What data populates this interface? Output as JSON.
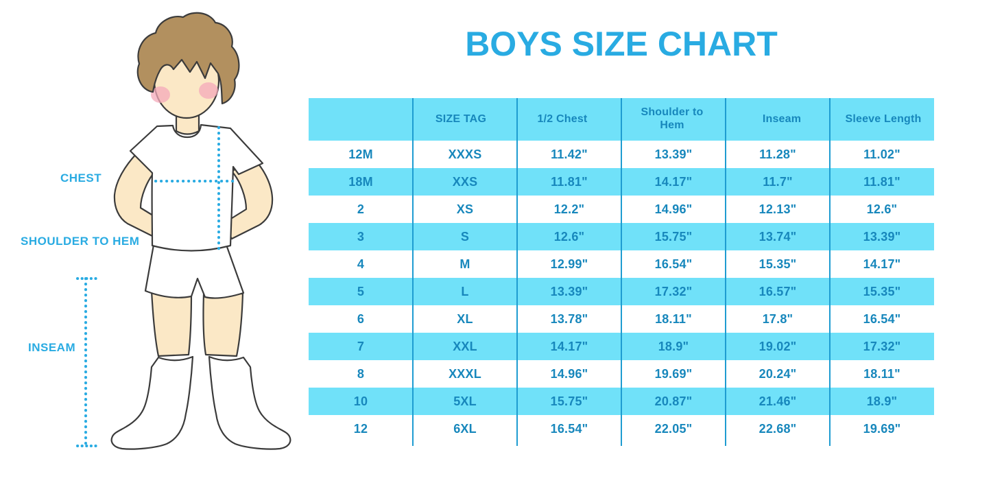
{
  "page_title": "BOYS SIZE CHART",
  "colors": {
    "title_blue": "#29abe2",
    "label_blue": "#29abe2",
    "table_cyan": "#70e1f9",
    "table_text": "#1787bc",
    "divider_blue": "#1e9cd1",
    "skin": "#fbe8c6",
    "hair": "#b2905f",
    "blush": "#f4a9ba",
    "outline": "#3b3b3b"
  },
  "figure": {
    "labels": [
      {
        "text": "CHEST"
      },
      {
        "text": "SHOULDER TO HEM"
      },
      {
        "text": "INSEAM"
      }
    ]
  },
  "chart_data": {
    "type": "table",
    "title": "BOYS SIZE CHART",
    "columns": [
      "",
      "SIZE TAG",
      "1/2 Chest",
      "Shoulder to Hem",
      "Inseam",
      "Sleeve Length"
    ],
    "rows": [
      [
        "12M",
        "XXXS",
        "11.42\"",
        "13.39\"",
        "11.28\"",
        "11.02\""
      ],
      [
        "18M",
        "XXS",
        "11.81\"",
        "14.17\"",
        "11.7\"",
        "11.81\""
      ],
      [
        "2",
        "XS",
        "12.2\"",
        "14.96\"",
        "12.13\"",
        "12.6\""
      ],
      [
        "3",
        "S",
        "12.6\"",
        "15.75\"",
        "13.74\"",
        "13.39\""
      ],
      [
        "4",
        "M",
        "12.99\"",
        "16.54\"",
        "15.35\"",
        "14.17\""
      ],
      [
        "5",
        "L",
        "13.39\"",
        "17.32\"",
        "16.57\"",
        "15.35\""
      ],
      [
        "6",
        "XL",
        "13.78\"",
        "18.11\"",
        "17.8\"",
        "16.54\""
      ],
      [
        "7",
        "XXL",
        "14.17\"",
        "18.9\"",
        "19.02\"",
        "17.32\""
      ],
      [
        "8",
        "XXXL",
        "14.96\"",
        "19.69\"",
        "20.24\"",
        "18.11\""
      ],
      [
        "10",
        "5XL",
        "15.75\"",
        "20.87\"",
        "21.46\"",
        "18.9\""
      ],
      [
        "12",
        "6XL",
        "16.54\"",
        "22.05\"",
        "22.68\"",
        "19.69\""
      ]
    ],
    "measurement_labels": [
      "CHEST",
      "SHOULDER TO HEM",
      "INSEAM"
    ],
    "row_striping": "white/cyan alternating, header cyan",
    "legend_position": "none",
    "grid": "vertical column dividers only"
  }
}
